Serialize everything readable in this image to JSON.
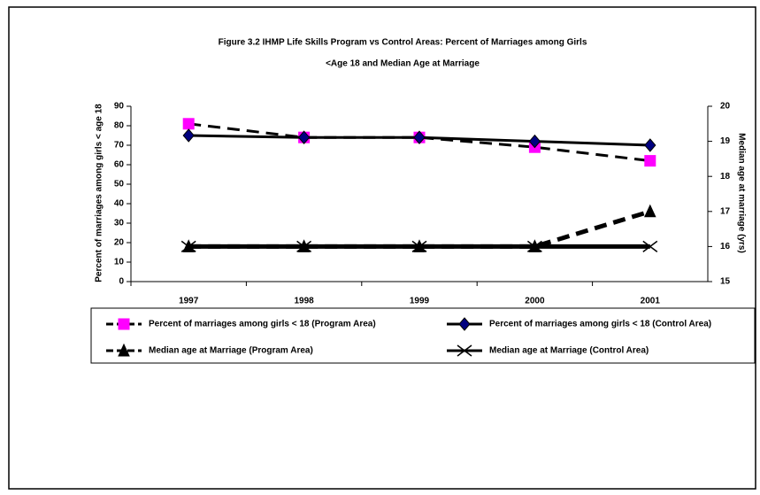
{
  "chart_data": {
    "type": "line",
    "title": "Figure 3.2 IHMP Life Skills Program vs Control Areas: Percent of Marriages among Girls",
    "subtitle": "<Age 18 and Median Age at Marriage",
    "y_label": "Percent of marriages among girls < age 18",
    "y2_label": "Median age at marriage (yrs)",
    "categories": [
      "1997",
      "1998",
      "1999",
      "2000",
      "2001"
    ],
    "ylim": [
      0,
      90
    ],
    "yticks": [
      0,
      10,
      20,
      30,
      40,
      50,
      60,
      70,
      80,
      90
    ],
    "y2lim": [
      15,
      20
    ],
    "y2ticks": [
      15,
      16,
      17,
      18,
      19,
      20
    ],
    "series": [
      {
        "name": "Percent of marriages among girls < 18 (Program Area)",
        "color": "#ff00ff",
        "marker": "square",
        "line_style": "dashed",
        "values": [
          81,
          74,
          74,
          69,
          62
        ]
      },
      {
        "name": "Percent of marriages among girls < 18 (Control Area)",
        "color": "#000080",
        "marker": "diamond",
        "line_style": "solid",
        "values": [
          75,
          74,
          74,
          72,
          70
        ]
      },
      {
        "name": "Median age at Marriage (Program Area)",
        "color": "#000000",
        "marker": "triangle",
        "line_style": "dashed",
        "axis": "y2",
        "values": [
          16,
          16,
          16,
          16,
          17
        ]
      },
      {
        "name": "Median age at Marriage (Control Area)",
        "color": "#000000",
        "marker": "x",
        "line_style": "solid",
        "axis": "y2",
        "values": [
          16,
          16,
          16,
          16,
          16
        ]
      }
    ]
  }
}
